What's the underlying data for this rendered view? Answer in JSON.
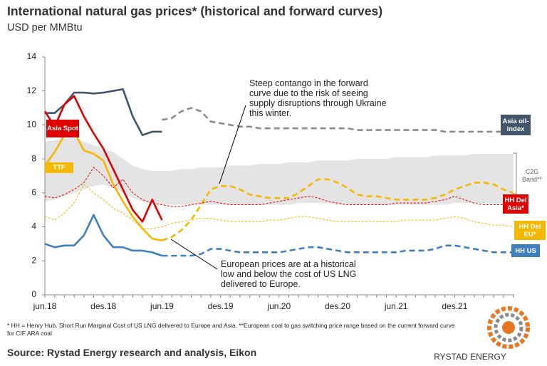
{
  "chart_data": {
    "type": "line",
    "title": "International natural gas prices* (historical and forward curves)",
    "subtitle": "USD per MMBtu",
    "categories": [
      "jun.18",
      null,
      null,
      null,
      null,
      null,
      "des.18",
      null,
      null,
      null,
      null,
      null,
      "jun.19",
      null,
      null,
      null,
      null,
      null,
      "des.19",
      null,
      null,
      null,
      null,
      null,
      "jun.20",
      null,
      null,
      null,
      null,
      null,
      "des.20",
      null,
      null,
      null,
      null,
      null,
      "jun.21",
      null,
      null,
      null,
      null,
      null,
      "des.21",
      null,
      null,
      null,
      null,
      null,
      null
    ],
    "ylim": [
      0,
      14
    ],
    "yticks": [
      0,
      2,
      4,
      6,
      8,
      10,
      12,
      14
    ],
    "band": {
      "name": "C2G Band**",
      "color": "#e4e4e4",
      "lower": [
        5.5,
        5.6,
        5.8,
        6.0,
        6.2,
        6.4,
        6.5,
        6.3,
        6.0,
        5.7,
        5.5,
        5.4,
        5.3,
        5.3,
        5.3,
        5.3,
        5.3,
        5.3,
        5.3,
        5.3,
        5.3,
        5.3,
        5.3,
        5.3,
        5.3,
        5.3,
        5.4,
        5.4,
        5.4,
        5.4,
        5.3,
        5.3,
        5.3,
        5.3,
        5.3,
        5.3,
        5.3,
        5.3,
        5.3,
        5.3,
        5.3,
        5.3,
        5.4,
        5.4,
        5.4,
        5.4,
        5.4,
        5.4,
        5.4
      ],
      "upper": [
        9.0,
        9.1,
        9.2,
        9.2,
        9.0,
        8.8,
        8.6,
        8.4,
        8.0,
        7.6,
        7.4,
        7.3,
        7.3,
        7.3,
        7.4,
        7.4,
        7.5,
        7.5,
        7.5,
        7.6,
        7.6,
        7.6,
        7.7,
        7.7,
        7.7,
        7.8,
        7.8,
        7.8,
        7.9,
        7.9,
        7.9,
        7.9,
        8.0,
        8.0,
        8.0,
        8.0,
        8.1,
        8.1,
        8.1,
        8.1,
        8.2,
        8.2,
        8.2,
        8.2,
        8.3,
        8.3,
        8.3,
        8.3,
        8.3
      ]
    },
    "series": [
      {
        "name": "Asia oil-index",
        "color": "#44546a",
        "forward_color": "#8c8c8c",
        "line": "solid",
        "values": [
          10.7,
          10.7,
          11.2,
          11.9,
          11.9,
          11.85,
          11.9,
          12.0,
          12.1,
          10.5,
          9.4,
          9.6,
          9.6,
          null,
          null,
          null,
          null,
          null,
          null,
          null,
          null,
          null,
          null,
          null,
          null,
          null,
          null,
          null,
          null,
          null,
          null,
          null,
          null,
          null,
          null,
          null,
          null,
          null,
          null,
          null,
          null,
          null,
          null,
          null,
          null,
          null,
          null,
          null,
          null
        ],
        "forward": [
          null,
          null,
          null,
          null,
          null,
          null,
          null,
          null,
          null,
          null,
          null,
          null,
          10.3,
          10.4,
          10.8,
          11.0,
          10.8,
          10.2,
          10.1,
          10.0,
          9.9,
          9.9,
          9.8,
          9.8,
          9.8,
          9.8,
          9.8,
          9.8,
          9.8,
          9.8,
          9.8,
          9.8,
          9.7,
          9.7,
          9.7,
          9.7,
          9.7,
          9.7,
          9.7,
          9.7,
          9.7,
          9.6,
          9.6,
          9.6,
          9.6,
          9.6,
          9.6,
          9.6,
          9.6
        ]
      },
      {
        "name": "Asia Spot",
        "color": "#e00000",
        "line": "solid",
        "values": [
          10.8,
          9.9,
          11.2,
          11.7,
          10.5,
          9.5,
          8.6,
          7.4,
          6.2,
          5.0,
          4.3,
          5.6,
          4.4,
          null,
          null,
          null,
          null,
          null,
          null,
          null,
          null,
          null,
          null,
          null,
          null,
          null,
          null,
          null,
          null,
          null,
          null,
          null,
          null,
          null,
          null,
          null,
          null,
          null,
          null,
          null,
          null,
          null,
          null,
          null,
          null,
          null,
          null,
          null,
          null
        ]
      },
      {
        "name": "TTF",
        "color": "#f5b800",
        "forward_color": "#f5b800",
        "line": "solid",
        "values": [
          7.6,
          8.4,
          9.4,
          9.6,
          8.5,
          8.3,
          7.9,
          6.5,
          5.5,
          4.6,
          3.9,
          3.3,
          3.2,
          null,
          null,
          null,
          null,
          null,
          null,
          null,
          null,
          null,
          null,
          null,
          null,
          null,
          null,
          null,
          null,
          null,
          null,
          null,
          null,
          null,
          null,
          null,
          null,
          null,
          null,
          null,
          null,
          null,
          null,
          null,
          null,
          null,
          null,
          null,
          null
        ],
        "forward": [
          null,
          null,
          null,
          null,
          null,
          null,
          null,
          null,
          null,
          null,
          null,
          null,
          3.2,
          3.4,
          3.8,
          4.4,
          5.3,
          6.2,
          6.4,
          6.4,
          6.2,
          5.9,
          5.8,
          5.7,
          5.7,
          5.7,
          6.0,
          6.4,
          6.8,
          6.8,
          6.6,
          6.3,
          5.9,
          5.8,
          5.8,
          5.7,
          5.6,
          5.6,
          5.6,
          5.6,
          5.7,
          5.9,
          6.2,
          6.4,
          6.6,
          6.6,
          6.5,
          6.2,
          6.0
        ]
      },
      {
        "name": "HH Del Asia*",
        "color": "#e00000",
        "line": "thin-dashed",
        "values": [
          5.8,
          5.7,
          5.9,
          6.2,
          6.6,
          7.5,
          7.0,
          6.3,
          6.8,
          6.0,
          5.6,
          5.4,
          5.3,
          5.2,
          5.2,
          5.3,
          5.4,
          5.5,
          5.4,
          5.3,
          5.3,
          5.3,
          5.3,
          5.4,
          5.5,
          5.6,
          5.7,
          5.8,
          5.7,
          5.5,
          5.4,
          5.3,
          5.3,
          5.3,
          5.3,
          5.3,
          5.4,
          5.4,
          5.4,
          5.4,
          5.5,
          5.6,
          5.8,
          5.6,
          5.4,
          5.3,
          5.3,
          5.3,
          5.2
        ]
      },
      {
        "name": "HH Del EU*",
        "color": "#f5b800",
        "line": "thin-dashed",
        "values": [
          4.6,
          4.4,
          4.8,
          5.4,
          6.5,
          6.0,
          5.6,
          5.1,
          4.8,
          4.4,
          3.9,
          3.9,
          4.0,
          4.2,
          4.3,
          4.4,
          4.5,
          4.5,
          4.4,
          4.3,
          4.3,
          4.3,
          4.3,
          4.4,
          4.4,
          4.5,
          4.6,
          4.6,
          4.5,
          4.4,
          4.3,
          4.3,
          4.3,
          4.3,
          4.3,
          4.3,
          4.3,
          4.4,
          4.4,
          4.4,
          4.4,
          4.5,
          4.6,
          4.5,
          4.3,
          4.2,
          4.1,
          4.1,
          4.0
        ]
      },
      {
        "name": "HH US",
        "color": "#3f7fbf",
        "forward_color": "#3f7fbf",
        "line": "solid",
        "values": [
          3.0,
          2.8,
          2.9,
          2.9,
          3.5,
          4.7,
          3.5,
          2.8,
          2.8,
          2.6,
          2.6,
          2.5,
          2.3,
          null,
          null,
          null,
          null,
          null,
          null,
          null,
          null,
          null,
          null,
          null,
          null,
          null,
          null,
          null,
          null,
          null,
          null,
          null,
          null,
          null,
          null,
          null,
          null,
          null,
          null,
          null,
          null,
          null,
          null,
          null,
          null,
          null,
          null,
          null,
          null
        ],
        "forward": [
          null,
          null,
          null,
          null,
          null,
          null,
          null,
          null,
          null,
          null,
          null,
          null,
          2.3,
          2.3,
          2.3,
          2.3,
          2.4,
          2.7,
          2.7,
          2.6,
          2.5,
          2.5,
          2.5,
          2.5,
          2.5,
          2.6,
          2.7,
          2.8,
          2.8,
          2.7,
          2.6,
          2.5,
          2.5,
          2.5,
          2.5,
          2.5,
          2.5,
          2.6,
          2.6,
          2.6,
          2.7,
          2.9,
          2.9,
          2.8,
          2.7,
          2.6,
          2.5,
          2.5,
          2.5
        ]
      }
    ],
    "annotations": [
      "Steep contango in the forward curve due to the risk of seeing supply disruptions through Ukraine this winter.",
      "European prices are at a historical low and below the cost of US LNG delivered to Europe."
    ]
  },
  "footnote": "* HH = Henry Hub. Short Run Marginal Cost of US LNG delivered to Europe and Asia. **European coal to gas switching price range based on the current forward curve for CIF ARA coal",
  "source": "Source: Rystad Energy research and analysis, Eikon",
  "logo_text": "RYSTAD ENERGY"
}
